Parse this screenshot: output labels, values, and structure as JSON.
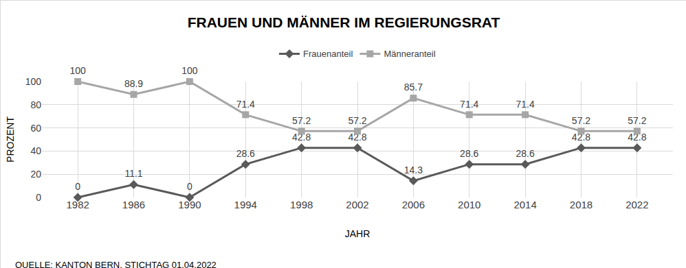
{
  "chart_data": {
    "type": "line",
    "title": "FRAUEN UND MÄNNER IM REGIERUNGSRAT",
    "x_label": "JAHR",
    "y_label": "PROZENT",
    "annotations": [
      "QUELLE: KANTON BERN, STICHTAG 01.04.2022"
    ],
    "categories": [
      "1982",
      "1986",
      "1990",
      "1994",
      "1998",
      "2002",
      "2006",
      "2010",
      "2014",
      "2018",
      "2022"
    ],
    "series": [
      {
        "name": "Frauenanteil",
        "color": "#595959",
        "marker": "diamond",
        "values": [
          0,
          11.1,
          0,
          28.6,
          42.8,
          42.8,
          14.3,
          28.6,
          28.6,
          42.8,
          42.8
        ]
      },
      {
        "name": "Männeranteil",
        "color": "#a6a6a6",
        "marker": "square",
        "values": [
          100,
          88.9,
          100,
          71.4,
          57.2,
          57.2,
          85.7,
          71.4,
          71.4,
          57.2,
          57.2
        ]
      }
    ],
    "ylim": [
      0,
      100
    ],
    "yticks": [
      0,
      20,
      40,
      60,
      80,
      100
    ],
    "grid": true,
    "legend": "top",
    "data_labels": true
  }
}
